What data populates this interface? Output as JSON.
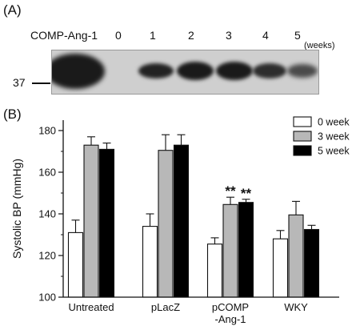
{
  "panel_a": {
    "label": "(A)",
    "row_label": "COMP-Ang-1",
    "lanes": [
      "0",
      "1",
      "2",
      "3",
      "4",
      "5"
    ],
    "lane_unit": "(weeks)",
    "marker": "37"
  },
  "panel_b": {
    "label": "(B)"
  },
  "chart_data": {
    "type": "bar",
    "ylabel": "Systolic BP (mmHg)",
    "ylim": [
      100,
      185
    ],
    "yticks": [
      100,
      120,
      140,
      160,
      180
    ],
    "categories": [
      "Untreated",
      "pLacZ",
      "pCOMP\n-Ang-1",
      "WKY"
    ],
    "series": [
      {
        "name": "0 week",
        "color": "#ffffff",
        "values": [
          131,
          134,
          125.5,
          128
        ],
        "errors": [
          6,
          6,
          3,
          4
        ]
      },
      {
        "name": "3 week",
        "color": "#b8b8b8",
        "values": [
          173,
          170.5,
          144.5,
          139.5
        ],
        "errors": [
          4,
          7.5,
          3.5,
          6.5
        ]
      },
      {
        "name": "5 week",
        "color": "#000000",
        "values": [
          171,
          173,
          145.5,
          132.5
        ],
        "errors": [
          3,
          5,
          1.5,
          2
        ]
      }
    ],
    "significance": [
      {
        "category_index": 2,
        "series_index": 1,
        "label": "**"
      },
      {
        "category_index": 2,
        "series_index": 2,
        "label": "**"
      }
    ],
    "legend_position": "top-right",
    "grid": false
  }
}
